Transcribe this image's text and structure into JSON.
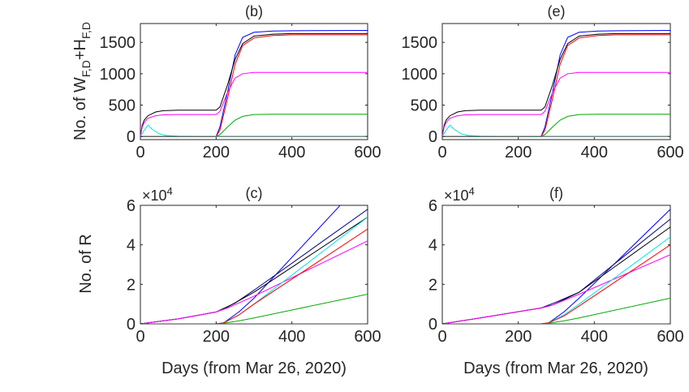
{
  "figure": {
    "ylabel_top": "No. of W",
    "ylabel_top_sub1": "F,D",
    "ylabel_top_plus": "+H",
    "ylabel_top_sub2": "F,D",
    "ylabel_bottom": "No. of R",
    "xlabel": "Days (from Mar 26, 2020)"
  },
  "chart_data": [
    {
      "type": "line",
      "title": "(b)",
      "xlim": [
        0,
        600
      ],
      "ylim": [
        -50,
        1800
      ],
      "xticks": [
        "0",
        "200",
        "400",
        "600"
      ],
      "yticks": [
        "0",
        "500",
        "1000",
        "1500"
      ],
      "multiplier": "",
      "series": [
        {
          "color": "#0000ff",
          "x": [
            0,
            150,
            200,
            210,
            230,
            250,
            270,
            300,
            350,
            400,
            600
          ],
          "y": [
            0,
            0,
            0,
            150,
            700,
            1300,
            1580,
            1660,
            1680,
            1685,
            1690
          ]
        },
        {
          "color": "#000000",
          "x": [
            0,
            5,
            10,
            20,
            40,
            60,
            100,
            150,
            200,
            210,
            230,
            250,
            270,
            300,
            350,
            400,
            600
          ],
          "y": [
            0,
            180,
            260,
            330,
            390,
            410,
            420,
            420,
            420,
            470,
            820,
            1230,
            1480,
            1600,
            1630,
            1640,
            1640
          ]
        },
        {
          "color": "#ff0000",
          "x": [
            0,
            150,
            200,
            210,
            230,
            250,
            270,
            300,
            350,
            400,
            600
          ],
          "y": [
            0,
            0,
            0,
            100,
            600,
            1150,
            1450,
            1570,
            1610,
            1620,
            1620
          ]
        },
        {
          "color": "#ff00ff",
          "x": [
            0,
            5,
            10,
            20,
            40,
            60,
            100,
            150,
            200,
            210,
            230,
            250,
            270,
            300,
            350,
            400,
            600
          ],
          "y": [
            0,
            150,
            220,
            290,
            330,
            345,
            350,
            350,
            350,
            400,
            700,
            930,
            1000,
            1020,
            1020,
            1020,
            1020
          ]
        },
        {
          "color": "#00aa00",
          "x": [
            0,
            150,
            200,
            210,
            230,
            250,
            270,
            300,
            350,
            400,
            600
          ],
          "y": [
            0,
            0,
            0,
            30,
            150,
            260,
            320,
            350,
            355,
            355,
            355
          ]
        },
        {
          "color": "#00e5e5",
          "x": [
            0,
            10,
            20,
            30,
            50,
            70,
            100,
            150,
            200,
            600
          ],
          "y": [
            0,
            100,
            180,
            120,
            40,
            15,
            5,
            2,
            1,
            1
          ]
        },
        {
          "color": "#555555",
          "x": [
            0,
            600
          ],
          "y": [
            0,
            0
          ]
        }
      ]
    },
    {
      "type": "line",
      "title": "(e)",
      "xlim": [
        0,
        600
      ],
      "ylim": [
        -50,
        1800
      ],
      "xticks": [
        "0",
        "200",
        "400",
        "600"
      ],
      "yticks": [
        "0",
        "500",
        "1000",
        "1500"
      ],
      "multiplier": "",
      "series": [
        {
          "color": "#0000ff",
          "x": [
            0,
            200,
            260,
            270,
            290,
            310,
            330,
            360,
            410,
            460,
            600
          ],
          "y": [
            0,
            0,
            0,
            150,
            700,
            1300,
            1580,
            1660,
            1680,
            1685,
            1690
          ]
        },
        {
          "color": "#000000",
          "x": [
            0,
            5,
            10,
            20,
            40,
            60,
            100,
            150,
            260,
            270,
            290,
            310,
            330,
            360,
            410,
            460,
            600
          ],
          "y": [
            0,
            180,
            260,
            330,
            390,
            410,
            420,
            420,
            420,
            470,
            820,
            1230,
            1480,
            1600,
            1630,
            1640,
            1640
          ]
        },
        {
          "color": "#ff0000",
          "x": [
            0,
            200,
            260,
            270,
            290,
            310,
            330,
            360,
            410,
            460,
            600
          ],
          "y": [
            0,
            0,
            0,
            100,
            600,
            1150,
            1450,
            1570,
            1610,
            1620,
            1620
          ]
        },
        {
          "color": "#ff00ff",
          "x": [
            0,
            5,
            10,
            20,
            40,
            60,
            100,
            150,
            260,
            270,
            290,
            310,
            330,
            360,
            410,
            460,
            600
          ],
          "y": [
            0,
            150,
            220,
            290,
            330,
            345,
            350,
            350,
            350,
            400,
            700,
            930,
            1000,
            1020,
            1020,
            1020,
            1020
          ]
        },
        {
          "color": "#00aa00",
          "x": [
            0,
            200,
            260,
            270,
            290,
            310,
            330,
            360,
            410,
            460,
            600
          ],
          "y": [
            0,
            0,
            0,
            30,
            150,
            260,
            320,
            350,
            355,
            355,
            355
          ]
        },
        {
          "color": "#00e5e5",
          "x": [
            0,
            10,
            20,
            30,
            50,
            70,
            100,
            150,
            200,
            600
          ],
          "y": [
            0,
            100,
            180,
            120,
            40,
            15,
            5,
            2,
            1,
            1
          ]
        },
        {
          "color": "#555555",
          "x": [
            0,
            600
          ],
          "y": [
            0,
            0
          ]
        }
      ]
    },
    {
      "type": "line",
      "title": "(c)",
      "xlim": [
        0,
        600
      ],
      "ylim": [
        0,
        6
      ],
      "xticks": [
        "0",
        "200",
        "400",
        "600"
      ],
      "yticks": [
        "0",
        "2",
        "4",
        "6"
      ],
      "multiplier": "×10",
      "multiplier_exp": "4",
      "series": [
        {
          "color": "#0000ff",
          "x": [
            0,
            200,
            220,
            260,
            300,
            600
          ],
          "y": [
            0,
            0,
            0.05,
            0.6,
            1.3,
            7.5
          ]
        },
        {
          "color": "#000080",
          "x": [
            0,
            100,
            200,
            250,
            300,
            600
          ],
          "y": [
            0,
            0.25,
            0.6,
            1.05,
            1.7,
            5.8
          ]
        },
        {
          "color": "#000000",
          "x": [
            0,
            100,
            200,
            230,
            300,
            600
          ],
          "y": [
            0,
            0.25,
            0.6,
            0.85,
            1.6,
            5.4
          ]
        },
        {
          "color": "#ff00ff",
          "x": [
            0,
            100,
            200,
            230,
            300,
            600
          ],
          "y": [
            0,
            0.25,
            0.6,
            0.8,
            1.4,
            4.2
          ]
        },
        {
          "color": "#00e5e5",
          "x": [
            0,
            200,
            220,
            260,
            300,
            600
          ],
          "y": [
            0,
            0,
            0.05,
            0.45,
            1.0,
            5.4
          ]
        },
        {
          "color": "#ff0000",
          "x": [
            0,
            200,
            220,
            260,
            300,
            600
          ],
          "y": [
            0,
            0,
            0.05,
            0.45,
            1.0,
            4.8
          ]
        },
        {
          "color": "#00aa00",
          "x": [
            0,
            200,
            220,
            260,
            300,
            600
          ],
          "y": [
            0,
            0,
            0.03,
            0.15,
            0.3,
            1.5
          ]
        },
        {
          "color": "#555555",
          "x": [
            0,
            600
          ],
          "y": [
            0,
            0
          ]
        }
      ]
    },
    {
      "type": "line",
      "title": "(f)",
      "xlim": [
        0,
        600
      ],
      "ylim": [
        0,
        6
      ],
      "xticks": [
        "0",
        "200",
        "400",
        "600"
      ],
      "yticks": [
        "0",
        "2",
        "4",
        "6"
      ],
      "multiplier": "×10",
      "multiplier_exp": "4",
      "series": [
        {
          "color": "#0000ff",
          "x": [
            0,
            260,
            280,
            320,
            360,
            600
          ],
          "y": [
            0,
            0,
            0.05,
            0.6,
            1.3,
            5.8
          ]
        },
        {
          "color": "#000080",
          "x": [
            0,
            100,
            260,
            300,
            360,
            600
          ],
          "y": [
            0,
            0.3,
            0.8,
            1.1,
            1.6,
            5.3
          ]
        },
        {
          "color": "#000000",
          "x": [
            0,
            100,
            260,
            290,
            360,
            600
          ],
          "y": [
            0,
            0.3,
            0.8,
            0.95,
            1.6,
            4.9
          ]
        },
        {
          "color": "#ff00ff",
          "x": [
            0,
            100,
            260,
            290,
            360,
            600
          ],
          "y": [
            0,
            0.3,
            0.8,
            0.95,
            1.5,
            3.5
          ]
        },
        {
          "color": "#00e5e5",
          "x": [
            0,
            260,
            280,
            320,
            360,
            600
          ],
          "y": [
            0,
            0,
            0.05,
            0.45,
            1.0,
            4.4
          ]
        },
        {
          "color": "#ff0000",
          "x": [
            0,
            260,
            280,
            320,
            360,
            600
          ],
          "y": [
            0,
            0,
            0.05,
            0.4,
            0.9,
            4.0
          ]
        },
        {
          "color": "#00aa00",
          "x": [
            0,
            260,
            280,
            320,
            360,
            600
          ],
          "y": [
            0,
            0,
            0.03,
            0.15,
            0.3,
            1.3
          ]
        },
        {
          "color": "#555555",
          "x": [
            0,
            600
          ],
          "y": [
            0,
            0
          ]
        }
      ]
    }
  ]
}
